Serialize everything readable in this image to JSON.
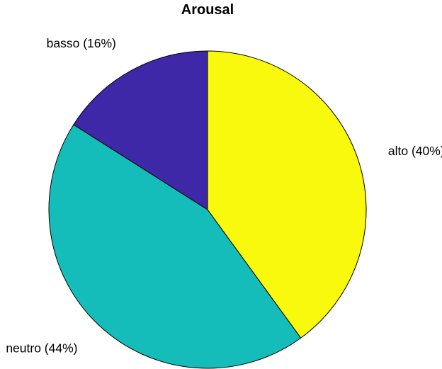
{
  "chart_data": {
    "type": "pie",
    "title": "Arousal",
    "start_angle": "top",
    "direction": "clockwise",
    "slices": [
      {
        "name": "alto",
        "label": "alto (40%)",
        "value": 40,
        "color": "#F9F90E"
      },
      {
        "name": "neutro",
        "label": "neutro (44%)",
        "value": 44,
        "color": "#14BDB9"
      },
      {
        "name": "basso",
        "label": "basso (16%)",
        "value": 16,
        "color": "#3E28A8"
      }
    ]
  }
}
